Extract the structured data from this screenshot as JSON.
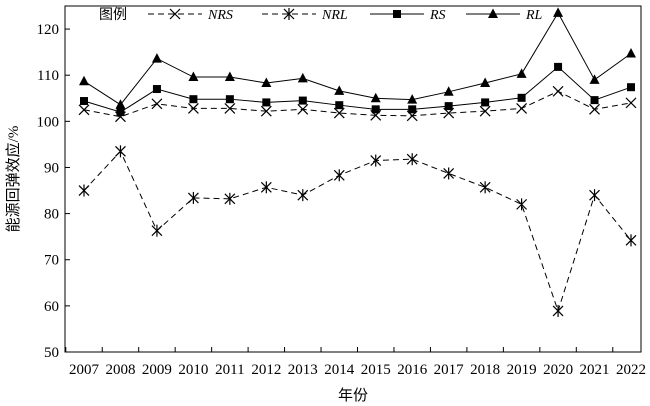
{
  "chart_data": {
    "type": "line",
    "xlabel": "年份",
    "ylabel": "能源回弹效应/%",
    "x": [
      "2007",
      "2008",
      "2009",
      "2010",
      "2011",
      "2012",
      "2013",
      "2014",
      "2015",
      "2016",
      "2017",
      "2018",
      "2019",
      "2020",
      "2021",
      "2022"
    ],
    "ylim": [
      50,
      125
    ],
    "yticks": [
      50,
      60,
      70,
      80,
      90,
      100,
      110,
      120
    ],
    "grid": false,
    "legend": {
      "title": "图例",
      "placement": "top"
    },
    "series": [
      {
        "name": "NRS",
        "marker": "x",
        "line": "dashed",
        "values": [
          102.5,
          101.0,
          103.8,
          102.8,
          102.8,
          102.2,
          102.6,
          101.8,
          101.3,
          101.2,
          101.8,
          102.2,
          102.8,
          106.5,
          102.6,
          104.0
        ]
      },
      {
        "name": "NRL",
        "marker": "asterisk",
        "line": "dashed",
        "values": [
          85.0,
          93.5,
          76.3,
          83.4,
          83.2,
          85.7,
          84.0,
          88.3,
          91.5,
          91.8,
          88.7,
          85.7,
          82.0,
          58.9,
          84.0,
          74.2
        ]
      },
      {
        "name": "RS",
        "marker": "square",
        "line": "solid",
        "values": [
          104.4,
          102.0,
          107.0,
          104.8,
          104.8,
          104.1,
          104.5,
          103.5,
          102.6,
          102.6,
          103.3,
          104.1,
          105.1,
          111.8,
          104.6,
          107.4
        ]
      },
      {
        "name": "RL",
        "marker": "triangle",
        "line": "solid",
        "values": [
          108.7,
          103.6,
          113.6,
          109.6,
          109.6,
          108.3,
          109.3,
          106.6,
          105.0,
          104.7,
          106.4,
          108.3,
          110.3,
          123.5,
          109.0,
          114.7
        ]
      }
    ]
  }
}
